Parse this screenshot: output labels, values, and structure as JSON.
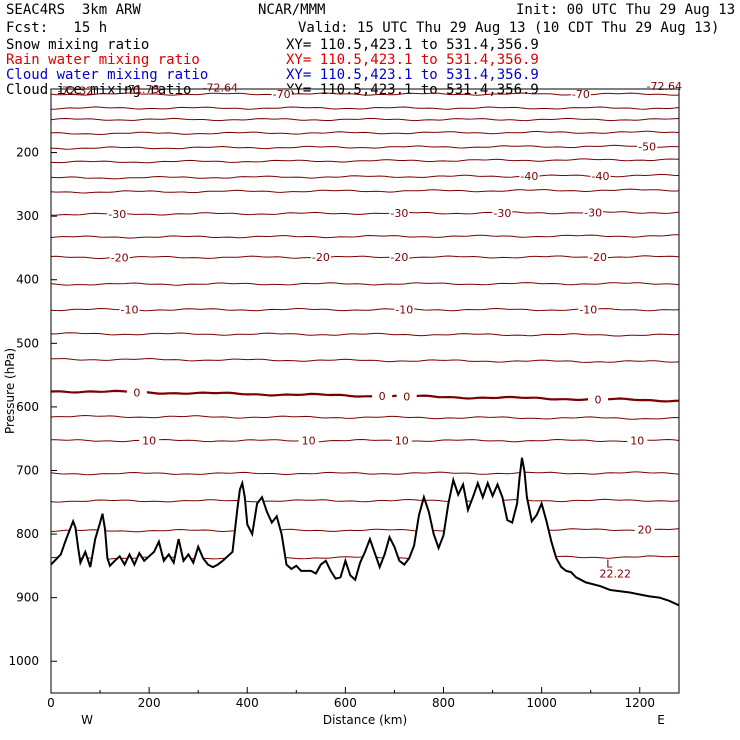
{
  "header": {
    "model": "SEAC4RS  3km ARW",
    "org": "NCAR/MMM",
    "init": "Init: 00 UTC Thu 29 Aug 13",
    "fcst": "Fcst:   15 h",
    "valid": "Valid: 15 UTC Thu 29 Aug 13 (10 CDT Thu 29 Aug 13)"
  },
  "fields": [
    {
      "label": "Snow mixing ratio",
      "xy": "XY= 110.5,423.1 to 531.4,356.9",
      "color": "#000000"
    },
    {
      "label": "Rain water mixing ratio",
      "xy": "XY= 110.5,423.1 to 531.4,356.9",
      "color": "#dd0000"
    },
    {
      "label": "Cloud water mixing ratio",
      "xy": "XY= 110.5,423.1 to 531.4,356.9",
      "color": "#0000cc"
    },
    {
      "label": "Cloud ice mixing ratio",
      "xy": "XY= 110.5,423.1 to 531.4,356.9",
      "color": "#000000"
    }
  ],
  "chart_data": {
    "type": "line",
    "xlabel": "Distance (km)",
    "ylabel": "Pressure (hPa)",
    "xlim": [
      0,
      1280
    ],
    "ylim": [
      1050,
      100
    ],
    "x_ticks": [
      "0",
      "200",
      "400",
      "600",
      "800",
      "1000",
      "1200"
    ],
    "y_ticks": [
      "200",
      "300",
      "400",
      "500",
      "600",
      "700",
      "800",
      "900",
      "1000"
    ],
    "x_end_labels": {
      "left": "W",
      "right": "E"
    },
    "isotherm_color": "#7a0000",
    "terrain_color": "#000000",
    "isotherms": [
      {
        "level": 108,
        "tilt": 0,
        "label": "-70",
        "label_x": [
          470,
          1080
        ]
      },
      {
        "level": 130,
        "tilt": 0,
        "label": "",
        "label_x": []
      },
      {
        "level": 148,
        "tilt": 0,
        "label": "",
        "label_x": []
      },
      {
        "level": 170,
        "tilt": 2,
        "label": "",
        "label_x": []
      },
      {
        "level": 193,
        "tilt": 3,
        "label": "-50",
        "label_x": [
          1215
        ]
      },
      {
        "level": 215,
        "tilt": 4,
        "label": "",
        "label_x": []
      },
      {
        "level": 240,
        "tilt": 4,
        "label": "-40",
        "label_x": [
          975,
          1120
        ]
      },
      {
        "level": 262,
        "tilt": 3,
        "label": "",
        "label_x": []
      },
      {
        "level": 297,
        "tilt": 3,
        "label": "-30",
        "label_x": [
          135,
          710,
          920,
          1105
        ]
      },
      {
        "level": 333,
        "tilt": 2,
        "label": "",
        "label_x": []
      },
      {
        "level": 365,
        "tilt": 1,
        "label": "-20",
        "label_x": [
          140,
          550,
          710,
          1115
        ]
      },
      {
        "level": 407,
        "tilt": 1,
        "label": "",
        "label_x": []
      },
      {
        "level": 447,
        "tilt": 0,
        "label": "-10",
        "label_x": [
          160,
          720,
          1095
        ]
      },
      {
        "level": 485,
        "tilt": -2,
        "label": "",
        "label_x": []
      },
      {
        "level": 525,
        "tilt": -4,
        "label": "",
        "label_x": []
      },
      {
        "level": 575,
        "tilt": -15,
        "label": "0",
        "label_x": [
          175,
          675,
          725,
          1115
        ],
        "bold": true
      },
      {
        "level": 615,
        "tilt": -3,
        "label": "",
        "label_x": []
      },
      {
        "level": 653,
        "tilt": 0,
        "label": "10",
        "label_x": [
          200,
          525,
          715,
          1195
        ]
      },
      {
        "level": 705,
        "tilt": 1,
        "label": "",
        "label_x": []
      },
      {
        "level": 748,
        "tilt": 1,
        "label": "",
        "label_x": []
      },
      {
        "level": 795,
        "tilt": 2,
        "label": "20",
        "label_x": [
          1210
        ]
      },
      {
        "level": 838,
        "tilt": 2,
        "label": "",
        "label_x": []
      }
    ],
    "annotations": [
      {
        "text": "-72.32",
        "x": 50,
        "p": 102
      },
      {
        "text": "-71.73",
        "x": 185,
        "p": 100
      },
      {
        "text": "-72.64",
        "x": 345,
        "p": 98
      },
      {
        "text": "-72.64",
        "x": 1250,
        "p": 95
      },
      {
        "text": "L",
        "x": 1138,
        "p": 846
      },
      {
        "text": "22.22",
        "x": 1150,
        "p": 862
      }
    ],
    "terrain": {
      "x": [
        0,
        10,
        20,
        30,
        40,
        45,
        50,
        55,
        60,
        70,
        80,
        90,
        100,
        105,
        110,
        115,
        120,
        130,
        140,
        150,
        160,
        170,
        180,
        190,
        200,
        210,
        220,
        230,
        240,
        250,
        260,
        270,
        280,
        290,
        300,
        310,
        320,
        330,
        340,
        350,
        360,
        370,
        380,
        385,
        390,
        395,
        400,
        410,
        420,
        430,
        440,
        450,
        460,
        470,
        480,
        490,
        500,
        510,
        520,
        530,
        540,
        550,
        560,
        570,
        580,
        590,
        600,
        610,
        620,
        630,
        640,
        650,
        660,
        670,
        680,
        690,
        700,
        710,
        720,
        730,
        740,
        750,
        760,
        770,
        780,
        790,
        800,
        810,
        820,
        830,
        840,
        850,
        860,
        870,
        880,
        890,
        900,
        910,
        920,
        930,
        940,
        950,
        955,
        960,
        965,
        970,
        980,
        990,
        1000,
        1010,
        1020,
        1030,
        1040,
        1050,
        1060,
        1070,
        1080,
        1090,
        1100,
        1120,
        1140,
        1160,
        1180,
        1200,
        1220,
        1240,
        1260,
        1280
      ],
      "p": [
        848,
        840,
        832,
        810,
        790,
        780,
        790,
        820,
        845,
        828,
        852,
        808,
        782,
        768,
        792,
        838,
        850,
        842,
        835,
        848,
        832,
        848,
        830,
        842,
        835,
        828,
        812,
        842,
        832,
        845,
        808,
        842,
        832,
        845,
        820,
        838,
        848,
        852,
        848,
        842,
        835,
        828,
        760,
        730,
        720,
        742,
        785,
        800,
        752,
        742,
        765,
        782,
        772,
        800,
        848,
        855,
        850,
        858,
        858,
        858,
        862,
        848,
        842,
        858,
        870,
        868,
        842,
        865,
        872,
        845,
        828,
        808,
        830,
        852,
        832,
        805,
        820,
        842,
        848,
        838,
        818,
        770,
        742,
        765,
        800,
        822,
        802,
        752,
        715,
        738,
        722,
        762,
        742,
        720,
        742,
        720,
        740,
        722,
        742,
        778,
        782,
        752,
        712,
        680,
        702,
        742,
        780,
        770,
        752,
        780,
        812,
        838,
        852,
        858,
        860,
        868,
        872,
        876,
        878,
        882,
        888,
        890,
        892,
        895,
        898,
        900,
        905,
        912
      ]
    }
  }
}
